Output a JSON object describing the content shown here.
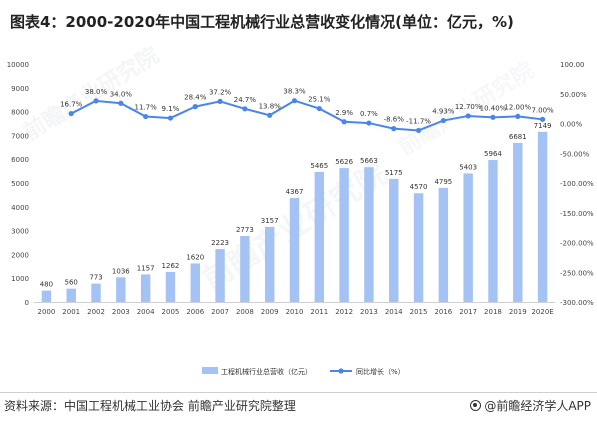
{
  "title": "图表4：2000-2020年中国工程机械行业总营收变化情况(单位：亿元，%)",
  "source": "资料来源：中国工程机械工业协会 前瞻产业研究院整理",
  "credit": "@前瞻经济学人APP",
  "watermark": {
    "brand": "前瞻产业研究院"
  },
  "colors": {
    "bar": "#a4c2f4",
    "line": "#4a86e8",
    "axis_text": "#444444",
    "baseline": "#d0d0d0"
  },
  "chart_data": {
    "type": "bar",
    "categories": [
      "2000",
      "2001",
      "2002",
      "2003",
      "2004",
      "2005",
      "2006",
      "2007",
      "2008",
      "2009",
      "2010",
      "2011",
      "2012",
      "2013",
      "2014",
      "2015",
      "2016",
      "2017",
      "2018",
      "2019",
      "2020E"
    ],
    "ylim": [
      0,
      10000
    ],
    "ytick_labels": [
      "0",
      "1000",
      "2000",
      "3000",
      "4000",
      "5000",
      "6000",
      "7000",
      "8000",
      "9000",
      "10000"
    ],
    "y2lim": [
      -300,
      100
    ],
    "y2tick_labels": [
      "100.00",
      "50.00%",
      "0.00%",
      "-50.00%",
      "-100.00%",
      "-150.00%",
      "-200.00%",
      "-250.00%",
      "-300.00%"
    ],
    "series": [
      {
        "name": "工程机械行业总营收（亿元）",
        "type": "bar",
        "values": [
          480,
          560,
          773,
          1036,
          1157,
          1262,
          1620,
          2223,
          2773,
          3157,
          4367,
          5465,
          5626,
          5663,
          5175,
          4570,
          4795,
          5403,
          5964,
          6681,
          7149
        ],
        "labels": [
          "480",
          "560",
          "773",
          "1036",
          "1157",
          "1262",
          "1620",
          "2223",
          "2773",
          "3157",
          "4367",
          "5465",
          "5626",
          "5663",
          "5175",
          "4570",
          "4795",
          "5403",
          "5964",
          "6681",
          "7149"
        ]
      },
      {
        "name": "同比增长（%）",
        "type": "line",
        "axis": "right",
        "values": [
          null,
          16.7,
          38.0,
          34.0,
          11.7,
          9.1,
          28.4,
          37.2,
          24.7,
          13.8,
          38.3,
          25.1,
          2.9,
          0.7,
          -8.6,
          -11.7,
          4.93,
          12.7,
          10.4,
          12.0,
          7.0
        ],
        "labels": [
          "",
          "16.7%",
          "38.0%",
          "34.0%",
          "11.7%",
          "9.1%",
          "28.4%",
          "37.2%",
          "24.7%",
          "13.8%",
          "38.3%",
          "25.1%",
          "2.9%",
          "0.7%",
          "-8.6%",
          "-11.7%",
          "4.93%",
          "12.70%",
          "10.40%",
          "12.00%",
          "7.00%"
        ]
      }
    ],
    "legend_position": "bottom",
    "grid": false
  }
}
